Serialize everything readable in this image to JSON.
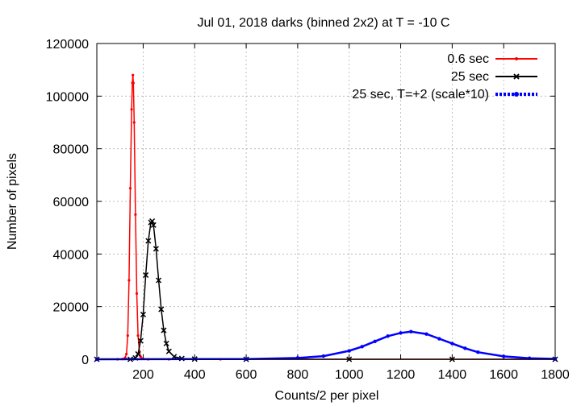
{
  "chart_data": {
    "type": "line",
    "title": "Jul 01, 2018 darks (binned 2x2) at T = -10 C",
    "xlabel": "Counts/2 per pixel",
    "ylabel": "Number of pixels",
    "xlim": [
      20,
      1800
    ],
    "ylim": [
      0,
      120000
    ],
    "x_ticks": [
      200,
      400,
      600,
      800,
      1000,
      1200,
      1400,
      1600,
      1800
    ],
    "y_ticks": [
      0,
      20000,
      40000,
      60000,
      80000,
      100000,
      120000
    ],
    "grid": true,
    "legend_position": "top-right",
    "series": [
      {
        "name": "0.6 sec",
        "color": "#ff0000",
        "marker": "dot",
        "x": [
          20,
          100,
          120,
          130,
          135,
          140,
          145,
          150,
          155,
          158,
          160,
          162,
          165,
          170,
          175,
          180,
          185,
          190,
          200,
          220,
          300,
          500,
          1000,
          1800
        ],
        "y": [
          0,
          0,
          100,
          600,
          2000,
          9000,
          30000,
          65000,
          95000,
          105000,
          108000,
          105000,
          90000,
          55000,
          25000,
          9000,
          3000,
          1000,
          200,
          0,
          0,
          0,
          0,
          0
        ]
      },
      {
        "name": "25 sec",
        "color": "#000000",
        "marker": "cross",
        "x": [
          20,
          150,
          170,
          180,
          190,
          200,
          210,
          220,
          230,
          235,
          240,
          250,
          260,
          270,
          280,
          290,
          300,
          320,
          350,
          400,
          600,
          1000,
          1400,
          1800
        ],
        "y": [
          0,
          0,
          500,
          2000,
          7000,
          17000,
          32000,
          45000,
          52000,
          52500,
          51000,
          42000,
          30000,
          19000,
          11000,
          6000,
          3000,
          1000,
          300,
          100,
          0,
          0,
          0,
          0
        ]
      },
      {
        "name": "25 sec, T=+2 (scale*10)",
        "color": "#0000ff",
        "marker": "dot",
        "x": [
          20,
          600,
          800,
          900,
          1000,
          1050,
          1100,
          1150,
          1200,
          1240,
          1300,
          1350,
          1400,
          1450,
          1500,
          1600,
          1700,
          1800
        ],
        "y": [
          0,
          100,
          500,
          1200,
          3200,
          4800,
          6800,
          8800,
          10000,
          10500,
          9600,
          7800,
          6000,
          4200,
          2700,
          1100,
          400,
          150
        ]
      }
    ]
  }
}
